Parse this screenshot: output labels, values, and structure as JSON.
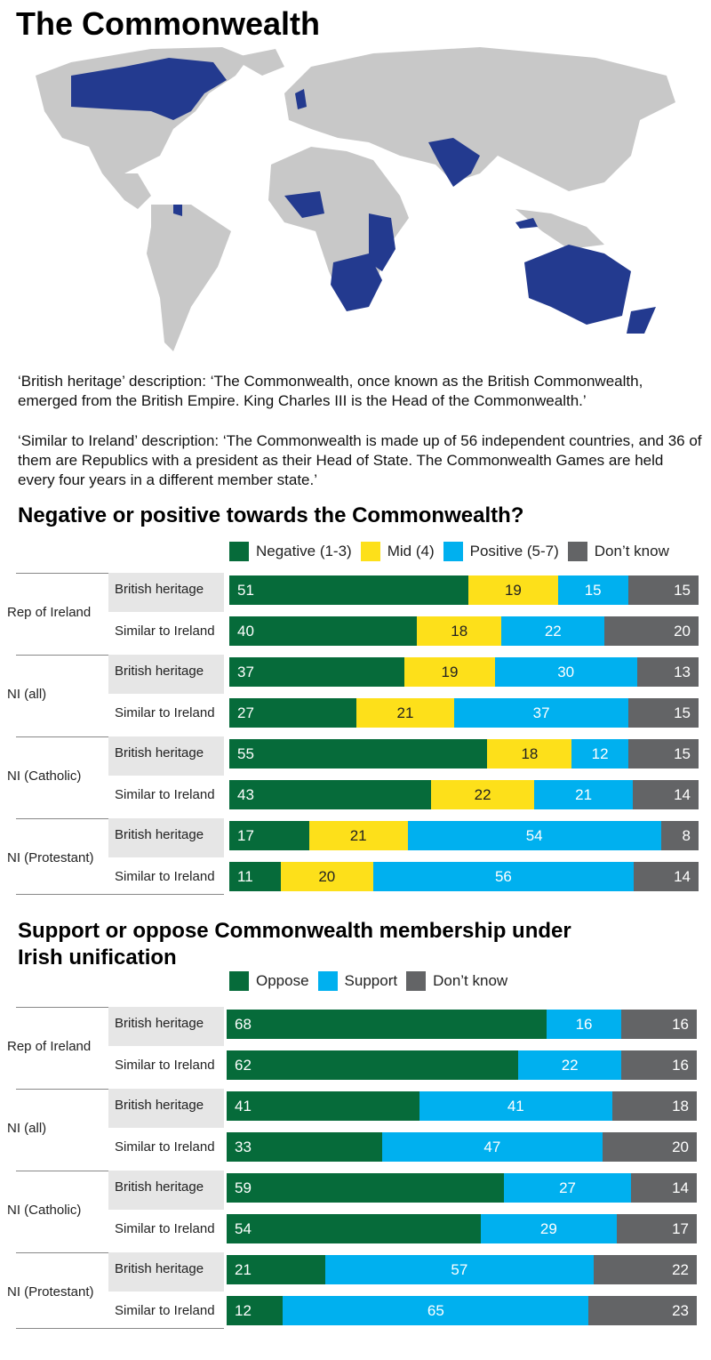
{
  "title": "The Commonwealth",
  "descriptions": [
    "‘British heritage’ description: ‘The Commonwealth, once known as the British Commonwealth, emerged from the British Empire. King Charles III is the Head of the Commonwealth.’",
    "‘Similar to Ireland’ description: ‘The Commonwealth is made up of 56 independent countries, and 36 of them are Republics with a president as their Head of State. The Commonwealth Games are held every four years in a different member state.’"
  ],
  "map": {
    "member_color": "#233a8f",
    "other_color": "#c8c8c8"
  },
  "chart_data": [
    {
      "type": "bar",
      "stacked": true,
      "orientation": "horizontal",
      "title": "Negative or positive towards the Commonwealth?",
      "legend": [
        "Negative (1-3)",
        "Mid (4)",
        "Positive (5-7)",
        "Don’t know"
      ],
      "colors": [
        "#066b3a",
        "#fde01a",
        "#00b0ef",
        "#636466"
      ],
      "label_colors": [
        "#ffffff",
        "#222222",
        "#ffffff",
        "#ffffff"
      ],
      "groups": [
        "Rep of Ireland",
        "NI (all)",
        "NI (Catholic)",
        "NI (Protestant)"
      ],
      "subcategories": [
        "British heritage",
        "Similar to Ireland"
      ],
      "rows": [
        [
          51,
          19,
          15,
          15
        ],
        [
          40,
          18,
          22,
          20
        ],
        [
          37,
          19,
          30,
          13
        ],
        [
          27,
          21,
          37,
          15
        ],
        [
          55,
          18,
          12,
          15
        ],
        [
          43,
          22,
          21,
          14
        ],
        [
          17,
          21,
          54,
          8
        ],
        [
          11,
          20,
          56,
          14
        ]
      ]
    },
    {
      "type": "bar",
      "stacked": true,
      "orientation": "horizontal",
      "title": "Support or oppose Commonwealth membership under Irish unification",
      "legend": [
        "Oppose",
        "Support",
        "Don’t know"
      ],
      "colors": [
        "#066b3a",
        "#00b0ef",
        "#636466"
      ],
      "label_colors": [
        "#ffffff",
        "#ffffff",
        "#ffffff"
      ],
      "groups": [
        "Rep of Ireland",
        "NI (all)",
        "NI (Catholic)",
        "NI (Protestant)"
      ],
      "subcategories": [
        "British heritage",
        "Similar to Ireland"
      ],
      "rows": [
        [
          68,
          16,
          16
        ],
        [
          62,
          22,
          16
        ],
        [
          41,
          41,
          18
        ],
        [
          33,
          47,
          20
        ],
        [
          59,
          27,
          14
        ],
        [
          54,
          29,
          17
        ],
        [
          21,
          57,
          22
        ],
        [
          12,
          65,
          23
        ]
      ]
    }
  ]
}
